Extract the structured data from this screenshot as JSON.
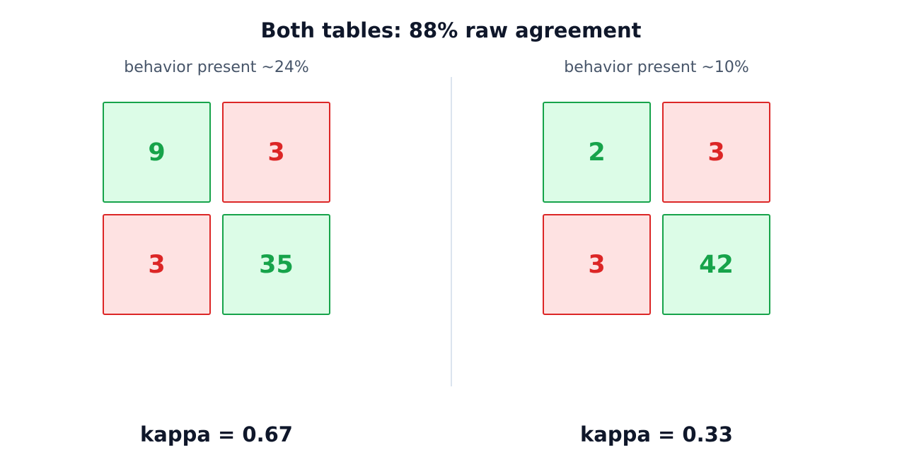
{
  "title": "Both tables: 88% raw agreement",
  "panels": [
    {
      "subtitle": "behavior present ~24%",
      "cells": [
        {
          "value": "9",
          "status": "agree"
        },
        {
          "value": "3",
          "status": "disagree"
        },
        {
          "value": "3",
          "status": "disagree"
        },
        {
          "value": "35",
          "status": "agree"
        }
      ],
      "kappa_label": "kappa = 0.67"
    },
    {
      "subtitle": "behavior present ~10%",
      "cells": [
        {
          "value": "2",
          "status": "agree"
        },
        {
          "value": "3",
          "status": "disagree"
        },
        {
          "value": "3",
          "status": "disagree"
        },
        {
          "value": "42",
          "status": "agree"
        }
      ],
      "kappa_label": "kappa = 0.33"
    }
  ],
  "colors": {
    "agree_fill": "#dcfce7",
    "agree_stroke": "#16a34a",
    "disagree_fill": "#fee2e2",
    "disagree_stroke": "#dc2626",
    "title_text": "#0f172a",
    "subtitle_text": "#475569",
    "divider": "#dbe4ef"
  }
}
